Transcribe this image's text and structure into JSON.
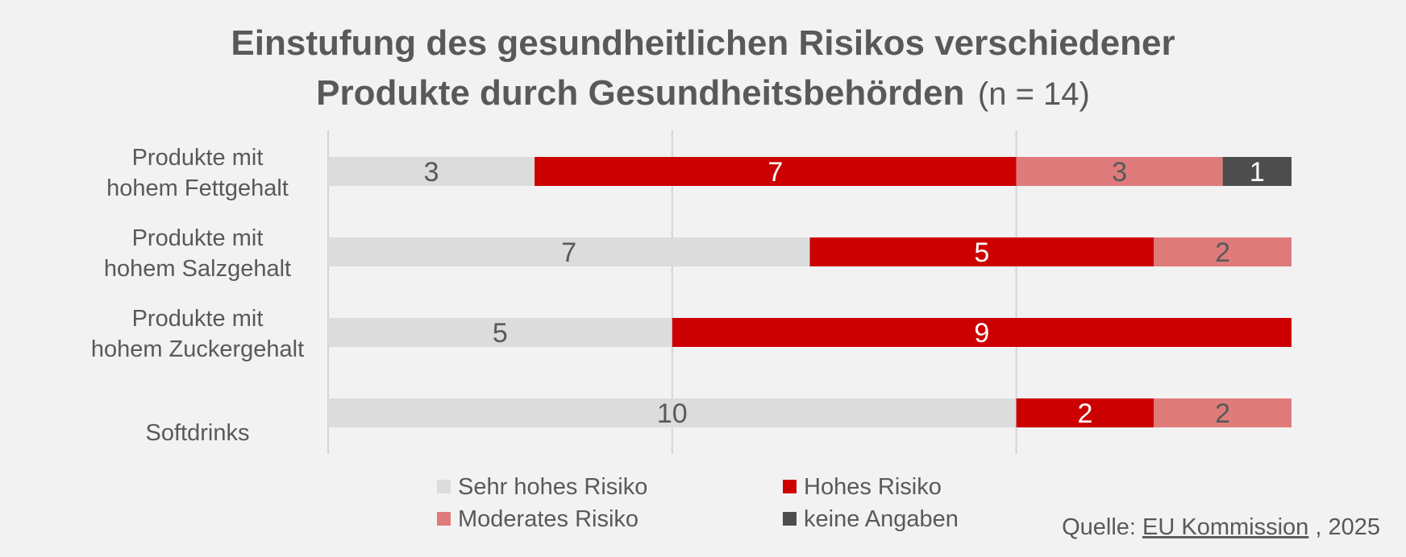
{
  "chart_data": {
    "type": "bar",
    "orientation": "horizontal",
    "stacked": true,
    "title": "Einstufung des gesundheitlichen Risikos verschiedener Produkte durch Gesundheitsbehörden",
    "title_line1": "Einstufung des gesundheitlichen Risikos verschiedener",
    "title_line2": "Produkte durch Gesundheitsbehörden",
    "title_suffix": "(n = 14)",
    "categories": [
      [
        "Produkte mit",
        "hohem Fettgehalt"
      ],
      [
        "Produkte mit",
        "hohem Salzgehalt"
      ],
      [
        "Produkte mit",
        "hohem Zuckergehalt"
      ],
      [
        "Softdrinks"
      ]
    ],
    "series": [
      {
        "name": "Sehr hohes Risiko",
        "color": "#dcdcdc",
        "label_color": "#595959",
        "values": [
          3,
          7,
          5,
          10
        ]
      },
      {
        "name": "Hohes Risiko",
        "color": "#cc0000",
        "label_color": "#ffffff",
        "values": [
          7,
          5,
          9,
          2
        ]
      },
      {
        "name": "Moderates Risiko",
        "color": "#e07b7b",
        "label_color": "#595959",
        "values": [
          3,
          2,
          0,
          2
        ]
      },
      {
        "name": "keine Angaben",
        "color": "#4d4d4d",
        "label_color": "#ffffff",
        "values": [
          1,
          0,
          0,
          0
        ]
      }
    ],
    "xlim": [
      0,
      14
    ],
    "grid_lines": [
      0,
      5,
      10
    ],
    "grid": true,
    "legend_position": "bottom",
    "xlabel": "",
    "ylabel": ""
  },
  "source": {
    "prefix": "Quelle: ",
    "link": "EU Kommission",
    "suffix": ", 2025"
  }
}
